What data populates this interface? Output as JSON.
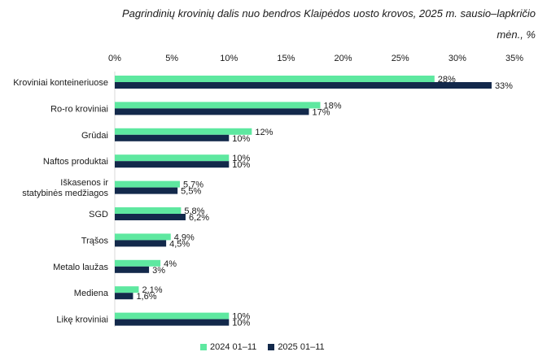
{
  "chart_data": {
    "type": "bar",
    "orientation": "horizontal",
    "title_line1": "Pagrindinių krovinių dalis nuo bendros Klaipėdos uosto krovos, 2025 m. sausio–lapkričio",
    "title_line2": "mėn.,  %",
    "x_ticks": [
      "0%",
      "5%",
      "10%",
      "15%",
      "20%",
      "25%",
      "30%",
      "35%"
    ],
    "xlim": [
      0,
      35
    ],
    "categories": [
      [
        "Kroviniai konteineriuose"
      ],
      [
        "Ro-ro kroviniai"
      ],
      [
        "Grūdai"
      ],
      [
        "Naftos produktai"
      ],
      [
        "Iškasenos ir",
        "statybinės medžiagos"
      ],
      [
        "SGD"
      ],
      [
        "Trąšos"
      ],
      [
        "Metalo laužas"
      ],
      [
        "Mediena"
      ],
      [
        "Likę kroviniai"
      ]
    ],
    "series": [
      {
        "name": "2024  01–11",
        "color": "#5ee8a0",
        "values": [
          28,
          18,
          12,
          10,
          5.7,
          5.8,
          4.9,
          4,
          2.1,
          10
        ],
        "labels": [
          "28%",
          "18%",
          "12%",
          "10%",
          "5,7%",
          "5,8%",
          "4,9%",
          "4%",
          "2,1%",
          "10%"
        ]
      },
      {
        "name": "2025  01–11",
        "color": "#13294b",
        "values": [
          33,
          17,
          10,
          10,
          5.5,
          6.2,
          4.5,
          3,
          1.6,
          10
        ],
        "labels": [
          "33%",
          "17%",
          "10%",
          "10%",
          "5,5%",
          "6,2%",
          "4,5%",
          "3%",
          "1,6%",
          "10%"
        ]
      }
    ],
    "legend_position": "bottom",
    "grid": false
  }
}
